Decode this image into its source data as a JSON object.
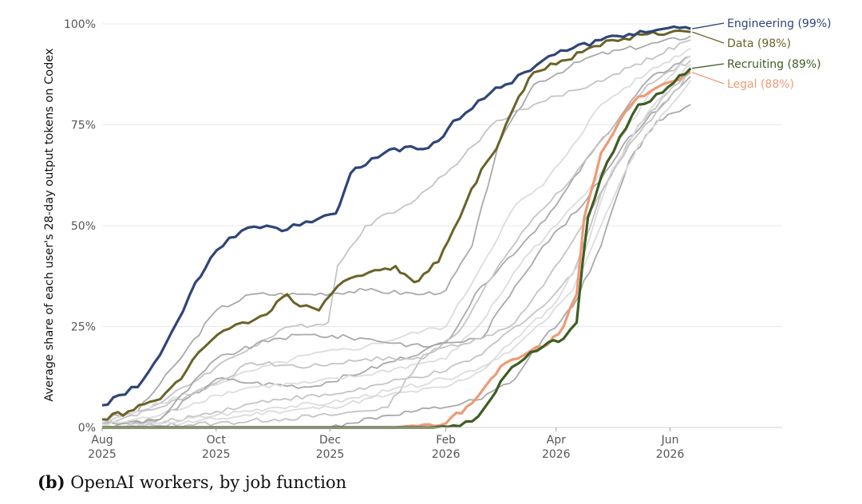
{
  "chart_data": {
    "type": "line",
    "caption_prefix": "(b)",
    "caption_text": "OpenAI workers, by job function",
    "ylabel": "Average share of each user's 28-day output tokens on Codex",
    "xlabel": "",
    "ylim": [
      0,
      100
    ],
    "y_ticks": [
      0,
      25,
      50,
      75,
      100
    ],
    "y_tick_labels": [
      "0%",
      "25%",
      "50%",
      "75%",
      "100%"
    ],
    "xlim": [
      "2025-08-01",
      "2026-07-31"
    ],
    "x_ticks": [
      {
        "date": "2025-08-01",
        "line1": "Aug",
        "line2": "2025"
      },
      {
        "date": "2025-10-01",
        "line1": "Oct",
        "line2": "2025"
      },
      {
        "date": "2025-12-01",
        "line1": "Dec",
        "line2": "2025"
      },
      {
        "date": "2026-02-01",
        "line1": "Feb",
        "line2": "2026"
      },
      {
        "date": "2026-04-01",
        "line1": "Apr",
        "line2": "2026"
      },
      {
        "date": "2026-06-01",
        "line1": "Jun",
        "line2": "2026"
      }
    ],
    "grid": true,
    "highlighted_series": [
      {
        "name": "Engineering",
        "end_label": "Engineering (99%)",
        "color": "#2f4577",
        "width": 3.2,
        "points": [
          [
            "2025-08-01",
            5.5
          ],
          [
            "2025-08-10",
            8
          ],
          [
            "2025-08-20",
            10
          ],
          [
            "2025-09-01",
            18
          ],
          [
            "2025-09-10",
            26
          ],
          [
            "2025-09-20",
            36
          ],
          [
            "2025-09-28",
            42
          ],
          [
            "2025-10-08",
            47
          ],
          [
            "2025-10-18",
            49.5
          ],
          [
            "2025-10-28",
            50
          ],
          [
            "2025-11-08",
            49
          ],
          [
            "2025-11-18",
            51
          ],
          [
            "2025-11-28",
            52.5
          ],
          [
            "2025-12-04",
            53
          ],
          [
            "2025-12-06",
            55
          ],
          [
            "2025-12-12",
            63
          ],
          [
            "2025-12-20",
            65
          ],
          [
            "2025-12-30",
            68
          ],
          [
            "2026-01-10",
            69.5
          ],
          [
            "2026-01-20",
            69
          ],
          [
            "2026-01-28",
            71
          ],
          [
            "2026-02-05",
            76
          ],
          [
            "2026-02-15",
            79
          ],
          [
            "2026-02-25",
            83
          ],
          [
            "2026-03-05",
            85
          ],
          [
            "2026-03-15",
            88
          ],
          [
            "2026-03-28",
            92
          ],
          [
            "2026-04-10",
            94
          ],
          [
            "2026-04-25",
            96
          ],
          [
            "2026-05-10",
            97.5
          ],
          [
            "2026-05-25",
            98.5
          ],
          [
            "2026-06-12",
            98.8
          ]
        ]
      },
      {
        "name": "Data",
        "end_label": "Data (98%)",
        "color": "#6b6228",
        "width": 3,
        "points": [
          [
            "2025-08-01",
            2
          ],
          [
            "2025-08-15",
            4
          ],
          [
            "2025-09-01",
            7
          ],
          [
            "2025-09-15",
            14
          ],
          [
            "2025-09-25",
            20
          ],
          [
            "2025-10-05",
            24
          ],
          [
            "2025-10-15",
            26
          ],
          [
            "2025-10-28",
            28
          ],
          [
            "2025-11-08",
            33
          ],
          [
            "2025-11-15",
            30
          ],
          [
            "2025-11-25",
            29
          ],
          [
            "2025-12-05",
            35
          ],
          [
            "2025-12-15",
            37.5
          ],
          [
            "2025-12-25",
            39
          ],
          [
            "2026-01-05",
            40
          ],
          [
            "2026-01-10",
            38
          ],
          [
            "2026-01-15",
            36
          ],
          [
            "2026-01-20",
            38
          ],
          [
            "2026-01-28",
            41
          ],
          [
            "2026-02-05",
            49
          ],
          [
            "2026-02-12",
            56
          ],
          [
            "2026-02-20",
            64
          ],
          [
            "2026-02-28",
            69
          ],
          [
            "2026-03-05",
            75
          ],
          [
            "2026-03-12",
            82
          ],
          [
            "2026-03-20",
            88
          ],
          [
            "2026-04-01",
            90
          ],
          [
            "2026-04-15",
            93
          ],
          [
            "2026-05-01",
            96
          ],
          [
            "2026-05-20",
            97.5
          ],
          [
            "2026-06-12",
            98
          ]
        ]
      },
      {
        "name": "Recruiting",
        "end_label": "Recruiting (89%)",
        "color": "#3d5d23",
        "width": 3.2,
        "points": [
          [
            "2025-08-01",
            0
          ],
          [
            "2026-01-25",
            0
          ],
          [
            "2026-02-05",
            0.5
          ],
          [
            "2026-02-15",
            1.5
          ],
          [
            "2026-02-25",
            7
          ],
          [
            "2026-03-05",
            13
          ],
          [
            "2026-03-15",
            17
          ],
          [
            "2026-03-25",
            20
          ],
          [
            "2026-04-05",
            22
          ],
          [
            "2026-04-12",
            26
          ],
          [
            "2026-04-15",
            40
          ],
          [
            "2026-04-18",
            52
          ],
          [
            "2026-04-25",
            62
          ],
          [
            "2026-05-05",
            72
          ],
          [
            "2026-05-15",
            80
          ],
          [
            "2026-05-28",
            83
          ],
          [
            "2026-06-12",
            89
          ]
        ]
      },
      {
        "name": "Legal",
        "end_label": "Legal (88%)",
        "color": "#ee9a76",
        "width": 3.2,
        "points": [
          [
            "2025-08-01",
            0
          ],
          [
            "2026-01-05",
            0
          ],
          [
            "2026-01-20",
            0.7
          ],
          [
            "2026-02-01",
            1
          ],
          [
            "2026-02-15",
            6
          ],
          [
            "2026-02-25",
            12
          ],
          [
            "2026-03-05",
            16
          ],
          [
            "2026-03-15",
            18
          ],
          [
            "2026-03-25",
            20
          ],
          [
            "2026-04-05",
            25
          ],
          [
            "2026-04-12",
            33
          ],
          [
            "2026-04-16",
            52
          ],
          [
            "2026-04-25",
            68
          ],
          [
            "2026-05-05",
            76
          ],
          [
            "2026-05-15",
            82
          ],
          [
            "2026-05-28",
            85
          ],
          [
            "2026-06-12",
            88
          ]
        ]
      }
    ],
    "background_series_colors": [
      "#a9a9a9",
      "#c4c4c4",
      "#dcdcdc"
    ],
    "background_series": [
      [
        [
          "2025-08-01",
          2
        ],
        [
          "2025-08-20",
          4
        ],
        [
          "2025-09-10",
          16
        ],
        [
          "2025-10-01",
          29
        ],
        [
          "2025-10-20",
          33
        ],
        [
          "2025-11-20",
          33
        ],
        [
          "2025-12-20",
          34
        ],
        [
          "2026-01-20",
          33
        ],
        [
          "2026-02-01",
          34
        ],
        [
          "2026-02-15",
          45
        ],
        [
          "2026-03-01",
          70
        ],
        [
          "2026-03-20",
          85
        ],
        [
          "2026-04-20",
          92
        ],
        [
          "2026-06-12",
          97
        ]
      ],
      [
        [
          "2025-08-01",
          1
        ],
        [
          "2025-09-01",
          6
        ],
        [
          "2025-10-01",
          15
        ],
        [
          "2025-10-20",
          20
        ],
        [
          "2025-11-10",
          25
        ],
        [
          "2025-11-30",
          26
        ],
        [
          "2025-12-05",
          40
        ],
        [
          "2025-12-20",
          50
        ],
        [
          "2026-01-10",
          55
        ],
        [
          "2026-01-25",
          60
        ],
        [
          "2026-02-10",
          67
        ],
        [
          "2026-02-28",
          76
        ],
        [
          "2026-03-20",
          80
        ],
        [
          "2026-04-20",
          85
        ],
        [
          "2026-06-12",
          96
        ]
      ],
      [
        [
          "2025-08-01",
          1
        ],
        [
          "2025-08-20",
          4
        ],
        [
          "2025-09-20",
          9
        ],
        [
          "2025-10-20",
          14
        ],
        [
          "2025-11-20",
          18
        ],
        [
          "2025-12-20",
          20
        ],
        [
          "2026-01-20",
          24
        ],
        [
          "2026-02-01",
          25
        ],
        [
          "2026-02-20",
          40
        ],
        [
          "2026-03-10",
          55
        ],
        [
          "2026-03-25",
          60
        ],
        [
          "2026-04-10",
          70
        ],
        [
          "2026-04-25",
          80
        ],
        [
          "2026-05-20",
          88
        ],
        [
          "2026-06-12",
          94
        ]
      ],
      [
        [
          "2025-08-01",
          1
        ],
        [
          "2025-09-01",
          2
        ],
        [
          "2025-10-01",
          12
        ],
        [
          "2025-10-20",
          11
        ],
        [
          "2025-11-20",
          10
        ],
        [
          "2025-12-20",
          14
        ],
        [
          "2026-01-20",
          19
        ],
        [
          "2026-02-01",
          21
        ],
        [
          "2026-02-20",
          35
        ],
        [
          "2026-03-15",
          46
        ],
        [
          "2026-04-01",
          55
        ],
        [
          "2026-04-20",
          68
        ],
        [
          "2026-05-20",
          86
        ],
        [
          "2026-06-12",
          92
        ]
      ],
      [
        [
          "2025-08-01",
          1
        ],
        [
          "2025-09-01",
          5
        ],
        [
          "2025-10-01",
          11
        ],
        [
          "2025-10-20",
          16
        ],
        [
          "2025-11-20",
          15
        ],
        [
          "2025-12-20",
          17
        ],
        [
          "2026-01-20",
          17
        ],
        [
          "2026-02-10",
          25
        ],
        [
          "2026-03-01",
          40
        ],
        [
          "2026-03-20",
          52
        ],
        [
          "2026-04-10",
          62
        ],
        [
          "2026-05-01",
          74
        ],
        [
          "2026-05-20",
          85
        ],
        [
          "2026-06-12",
          91
        ]
      ],
      [
        [
          "2025-08-01",
          0.5
        ],
        [
          "2025-09-01",
          3
        ],
        [
          "2025-10-01",
          8
        ],
        [
          "2025-10-20",
          10
        ],
        [
          "2025-11-20",
          11
        ],
        [
          "2025-12-20",
          13
        ],
        [
          "2026-01-20",
          16
        ],
        [
          "2026-02-01",
          17
        ],
        [
          "2026-02-20",
          26
        ],
        [
          "2026-03-15",
          42
        ],
        [
          "2026-04-01",
          50
        ],
        [
          "2026-04-20",
          60
        ],
        [
          "2026-05-20",
          82
        ],
        [
          "2026-06-12",
          92
        ]
      ],
      [
        [
          "2025-08-01",
          0
        ],
        [
          "2025-09-01",
          2
        ],
        [
          "2025-10-01",
          17
        ],
        [
          "2025-11-01",
          22
        ],
        [
          "2025-11-20",
          23
        ],
        [
          "2025-12-20",
          22
        ],
        [
          "2026-01-20",
          20
        ],
        [
          "2026-02-01",
          21
        ],
        [
          "2026-02-20",
          22
        ],
        [
          "2026-03-10",
          35
        ],
        [
          "2026-03-25",
          45
        ],
        [
          "2026-04-15",
          55
        ],
        [
          "2026-05-10",
          72
        ],
        [
          "2026-06-12",
          87
        ]
      ],
      [
        [
          "2025-08-01",
          0
        ],
        [
          "2025-09-01",
          1
        ],
        [
          "2025-10-01",
          4
        ],
        [
          "2025-11-01",
          7
        ],
        [
          "2025-12-01",
          8
        ],
        [
          "2026-01-01",
          11
        ],
        [
          "2026-02-01",
          14
        ],
        [
          "2026-02-20",
          18
        ],
        [
          "2026-03-10",
          25
        ],
        [
          "2026-03-25",
          30
        ],
        [
          "2026-04-10",
          38
        ],
        [
          "2026-04-25",
          58
        ],
        [
          "2026-05-15",
          75
        ],
        [
          "2026-06-12",
          89
        ]
      ],
      [
        [
          "2025-08-01",
          0
        ],
        [
          "2025-09-01",
          0.5
        ],
        [
          "2025-10-01",
          2
        ],
        [
          "2025-11-01",
          4
        ],
        [
          "2025-12-01",
          5
        ],
        [
          "2026-01-01",
          8
        ],
        [
          "2026-02-01",
          10
        ],
        [
          "2026-02-20",
          14
        ],
        [
          "2026-03-10",
          22
        ],
        [
          "2026-03-30",
          30
        ],
        [
          "2026-04-15",
          42
        ],
        [
          "2026-05-01",
          64
        ],
        [
          "2026-05-20",
          78
        ],
        [
          "2026-06-12",
          90
        ]
      ],
      [
        [
          "2025-08-01",
          0
        ],
        [
          "2025-12-01",
          0
        ],
        [
          "2025-12-10",
          1
        ],
        [
          "2026-01-01",
          3
        ],
        [
          "2026-02-01",
          5
        ],
        [
          "2026-02-20",
          7
        ],
        [
          "2026-03-10",
          12
        ],
        [
          "2026-03-25",
          22
        ],
        [
          "2026-04-10",
          30
        ],
        [
          "2026-04-25",
          45
        ],
        [
          "2026-05-10",
          66
        ],
        [
          "2026-05-25",
          76
        ],
        [
          "2026-06-12",
          80
        ]
      ],
      [
        [
          "2025-08-01",
          0
        ],
        [
          "2025-09-01",
          0.5
        ],
        [
          "2025-10-01",
          1
        ],
        [
          "2025-11-01",
          2
        ],
        [
          "2025-12-01",
          3
        ],
        [
          "2026-01-01",
          5
        ],
        [
          "2026-01-20",
          18
        ],
        [
          "2026-02-01",
          20
        ],
        [
          "2026-02-20",
          22
        ],
        [
          "2026-03-10",
          26
        ],
        [
          "2026-03-25",
          35
        ],
        [
          "2026-04-15",
          50
        ],
        [
          "2026-05-10",
          70
        ],
        [
          "2026-06-12",
          88
        ]
      ],
      [
        [
          "2025-08-01",
          0
        ],
        [
          "2025-09-01",
          1
        ],
        [
          "2025-10-01",
          3
        ],
        [
          "2025-11-01",
          5
        ],
        [
          "2025-12-01",
          6
        ],
        [
          "2026-01-01",
          9
        ],
        [
          "2026-02-01",
          12
        ],
        [
          "2026-02-20",
          15
        ],
        [
          "2026-03-10",
          20
        ],
        [
          "2026-03-25",
          26
        ],
        [
          "2026-04-10",
          34
        ],
        [
          "2026-04-25",
          50
        ],
        [
          "2026-05-15",
          70
        ],
        [
          "2026-06-12",
          86
        ]
      ]
    ]
  }
}
